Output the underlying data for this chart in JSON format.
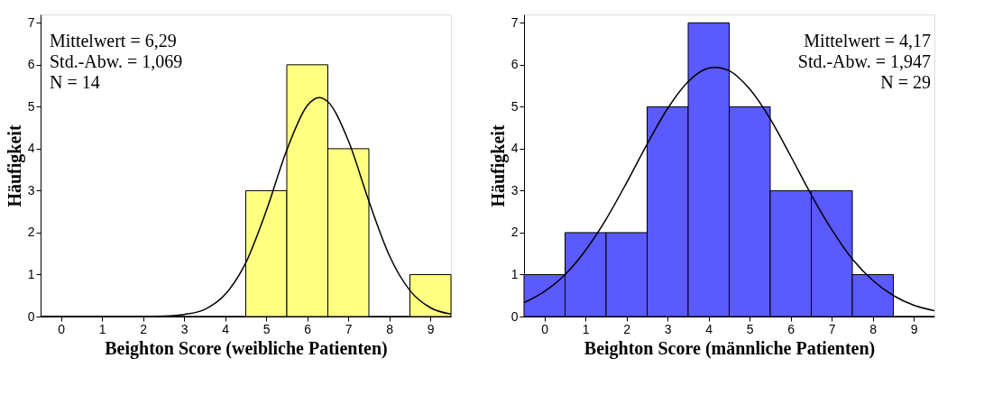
{
  "chart_data": [
    {
      "type": "histogram",
      "xlabel": "Beighton Score (weibliche Patienten)",
      "ylabel": "Häufigkeit",
      "bins": [
        -0.5,
        0.5,
        1.5,
        2.5,
        3.5,
        4.5,
        5.5,
        6.5,
        7.5,
        8.5,
        9.5
      ],
      "values": [
        0,
        0,
        0,
        0,
        0,
        3,
        6,
        4,
        0,
        1
      ],
      "color": "#ffff80",
      "xlim": [
        -0.5,
        9.5
      ],
      "xticks": [
        0,
        1,
        2,
        3,
        4,
        5,
        6,
        7,
        8,
        9
      ],
      "ylim": [
        0,
        7.2
      ],
      "yticks": [
        0,
        1,
        2,
        3,
        4,
        5,
        6,
        7
      ],
      "grid": false,
      "annotations": [
        "Mittelwert = 6,29",
        "Std.-Abw. = 1,069",
        "N = 14"
      ],
      "series": [
        {
          "type": "line",
          "color": "#000000",
          "x": [
            -0.5,
            0,
            1,
            2,
            2.5,
            3,
            3.5,
            4,
            4.5,
            5,
            5.5,
            6,
            6.29,
            6.5,
            7,
            7.5,
            8,
            8.5,
            9,
            9.5
          ],
          "values": [
            0,
            0,
            0,
            0,
            0.01,
            0.05,
            0.17,
            0.53,
            1.28,
            2.52,
            3.97,
            5.03,
            5.22,
            5.12,
            4.19,
            2.75,
            1.45,
            0.62,
            0.21,
            0.06
          ]
        }
      ]
    },
    {
      "type": "histogram",
      "xlabel": "Beighton Score (männliche Patienten)",
      "ylabel": "Häufigkeit",
      "bins": [
        -0.5,
        0.5,
        1.5,
        2.5,
        3.5,
        4.5,
        5.5,
        6.5,
        7.5,
        8.5,
        9.5
      ],
      "values": [
        1,
        2,
        2,
        5,
        7,
        5,
        3,
        3,
        1,
        0
      ],
      "color": "#5a5aff",
      "xlim": [
        -0.5,
        9.5
      ],
      "xticks": [
        0,
        1,
        2,
        3,
        4,
        5,
        6,
        7,
        8,
        9
      ],
      "ylim": [
        0,
        7.2
      ],
      "yticks": [
        0,
        1,
        2,
        3,
        4,
        5,
        6,
        7
      ],
      "grid": false,
      "annotations": [
        "Mittelwert = 4,17",
        "Std.-Abw. = 1,947",
        "N = 29"
      ],
      "series": [
        {
          "type": "line",
          "color": "#000000",
          "x": [
            -0.5,
            0,
            0.5,
            1,
            1.5,
            2,
            2.5,
            3,
            3.5,
            4,
            4.17,
            4.5,
            5,
            5.5,
            6,
            6.5,
            7,
            7.5,
            8,
            8.5,
            9,
            9.5
          ],
          "values": [
            0.33,
            0.6,
            1.0,
            1.58,
            2.32,
            3.19,
            4.11,
            4.96,
            5.6,
            5.92,
            5.94,
            5.86,
            5.42,
            4.71,
            3.82,
            2.9,
            2.07,
            1.37,
            0.86,
            0.5,
            0.27,
            0.14
          ]
        }
      ]
    }
  ]
}
